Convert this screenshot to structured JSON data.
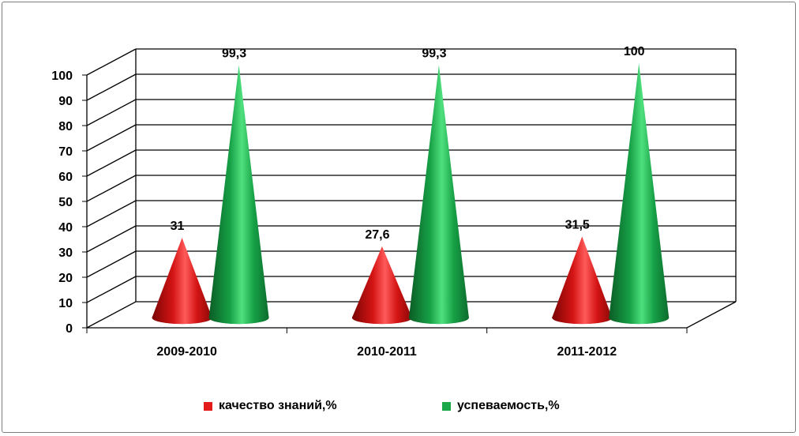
{
  "chart_data": {
    "type": "bar",
    "style": "3d-cone",
    "categories": [
      "2009-2010",
      "2010-2011",
      "2011-2012"
    ],
    "series": [
      {
        "name": "качество знаний,%",
        "values": [
          31,
          27.6,
          31.5
        ],
        "labels": [
          "31",
          "27,6",
          "31,5"
        ],
        "color": "#e31b1b"
      },
      {
        "name": "успеваемость,%",
        "values": [
          99.3,
          99.3,
          100
        ],
        "labels": [
          "99,3",
          "99,3",
          "100"
        ],
        "color": "#1aa84a"
      }
    ],
    "yticks": [
      "0",
      "10",
      "20",
      "30",
      "40",
      "50",
      "60",
      "70",
      "80",
      "90",
      "100"
    ],
    "ylim": [
      0,
      100
    ],
    "grid": true,
    "legend_position": "bottom"
  }
}
